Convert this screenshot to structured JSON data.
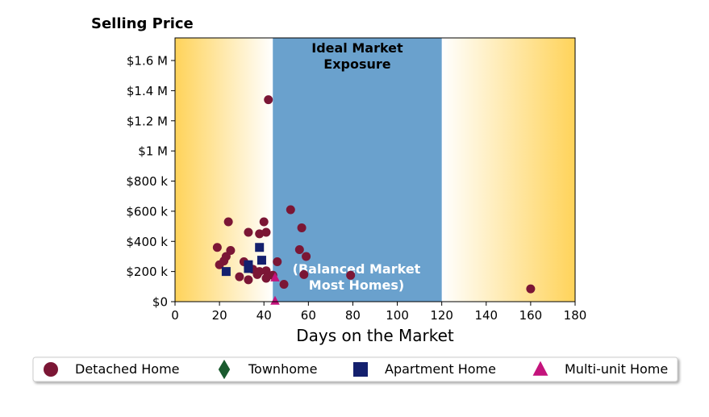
{
  "chart_data": {
    "type": "scatter",
    "title": "Selling Price",
    "xlabel": "Days on the Market",
    "ylabel": "",
    "xlim": [
      0,
      180
    ],
    "ylim": [
      0,
      1750000
    ],
    "xticks": [
      0,
      20,
      40,
      60,
      80,
      100,
      120,
      140,
      160,
      180
    ],
    "xtick_labels": [
      "0",
      "20",
      "40",
      "60",
      "80",
      "100",
      "120",
      "140",
      "160",
      "180"
    ],
    "yticks": [
      0,
      200000,
      400000,
      600000,
      800000,
      1000000,
      1200000,
      1400000,
      1600000
    ],
    "ytick_labels": [
      "$0",
      "$200 k",
      "$400 k",
      "$600 k",
      "$800 k",
      "$1 M",
      "$1.2 M",
      "$1.4 M",
      "$1.6 M"
    ],
    "grid": false,
    "legend_position": "bottom",
    "ideal_band": {
      "x_range": [
        44,
        120
      ],
      "title_lines": [
        "Ideal Market",
        "Exposure"
      ],
      "sub_lines": [
        "(Balanced Market",
        "Most Homes)"
      ],
      "color": "#6aa1cd"
    },
    "gradient_color": "#ffd35a",
    "series": [
      {
        "name": "Detached Home",
        "marker": "circle",
        "color": "#7b1635",
        "points": [
          [
            42,
            1340000
          ],
          [
            52,
            610000
          ],
          [
            24,
            530000
          ],
          [
            40,
            530000
          ],
          [
            57,
            490000
          ],
          [
            33,
            460000
          ],
          [
            38,
            450000
          ],
          [
            41,
            460000
          ],
          [
            19,
            360000
          ],
          [
            25,
            340000
          ],
          [
            56,
            345000
          ],
          [
            59,
            300000
          ],
          [
            23,
            300000
          ],
          [
            22,
            270000
          ],
          [
            20,
            245000
          ],
          [
            31,
            265000
          ],
          [
            46,
            265000
          ],
          [
            35,
            215000
          ],
          [
            38,
            200000
          ],
          [
            41,
            205000
          ],
          [
            37,
            180000
          ],
          [
            44,
            175000
          ],
          [
            58,
            180000
          ],
          [
            79,
            175000
          ],
          [
            29,
            165000
          ],
          [
            41,
            155000
          ],
          [
            33,
            145000
          ],
          [
            49,
            115000
          ],
          [
            160,
            85000
          ]
        ]
      },
      {
        "name": "Townhome",
        "marker": "diamond",
        "color": "#1a5a2e",
        "points": []
      },
      {
        "name": "Apartment Home",
        "marker": "square",
        "color": "#14206e",
        "points": [
          [
            38,
            360000
          ],
          [
            39,
            275000
          ],
          [
            33,
            245000
          ],
          [
            33,
            220000
          ],
          [
            23,
            200000
          ]
        ]
      },
      {
        "name": "Multi-unit Home",
        "marker": "triangle",
        "color": "#c4137c",
        "points": [
          [
            45,
            160000
          ],
          [
            45,
            5000
          ]
        ]
      }
    ]
  }
}
